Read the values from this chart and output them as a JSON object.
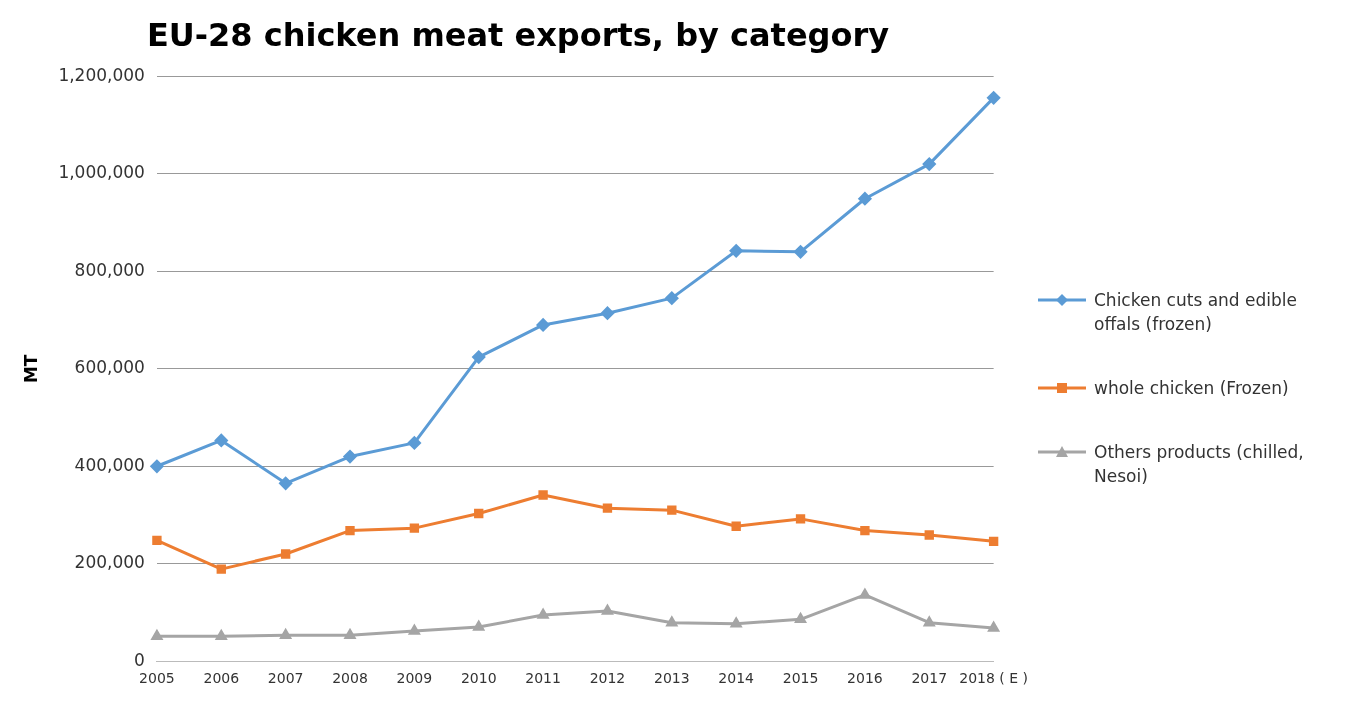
{
  "chart_data": {
    "type": "line",
    "title": "EU-28 chicken meat exports, by category",
    "ylabel": "MT",
    "categories": [
      "2005",
      "2006",
      "2007",
      "2008",
      "2009",
      "2010",
      "2011",
      "2012",
      "2013",
      "2014",
      "2015",
      "2016",
      "2017",
      "2018 ( E )"
    ],
    "series": [
      {
        "name": "Chicken cuts and edible offals (frozen)",
        "color": "#5b9bd5",
        "marker": "diamond",
        "values": [
          400000,
          453000,
          365000,
          420000,
          448000,
          624000,
          690000,
          714000,
          745000,
          842000,
          840000,
          949000,
          1020000,
          1156000
        ]
      },
      {
        "name": "whole chicken  (Frozen)",
        "color": "#ed7d31",
        "marker": "square",
        "values": [
          248000,
          189000,
          220000,
          268000,
          273000,
          303000,
          341000,
          314000,
          310000,
          277000,
          292000,
          268000,
          259000,
          246000
        ]
      },
      {
        "name": "Others products (chilled, Nesoi)",
        "color": "#a5a5a5",
        "marker": "triangle",
        "values": [
          51000,
          51000,
          53000,
          53000,
          62000,
          70000,
          95000,
          103000,
          79000,
          77000,
          86000,
          136000,
          79000,
          68000
        ]
      }
    ],
    "ylim": [
      0,
      1200000
    ],
    "yticks": [
      0,
      {
        "value": 200000,
        "label": "200,000"
      },
      {
        "value": 400000,
        "label": "400,000"
      },
      {
        "value": 600000,
        "label": "600,000"
      },
      {
        "value": 800000,
        "label": "800,000"
      },
      {
        "value": 1000000,
        "label": "1,000,000"
      },
      {
        "value": 1200000,
        "label": "1,200,000"
      }
    ],
    "grid": "y",
    "legend": "right",
    "line_style": "solid"
  }
}
